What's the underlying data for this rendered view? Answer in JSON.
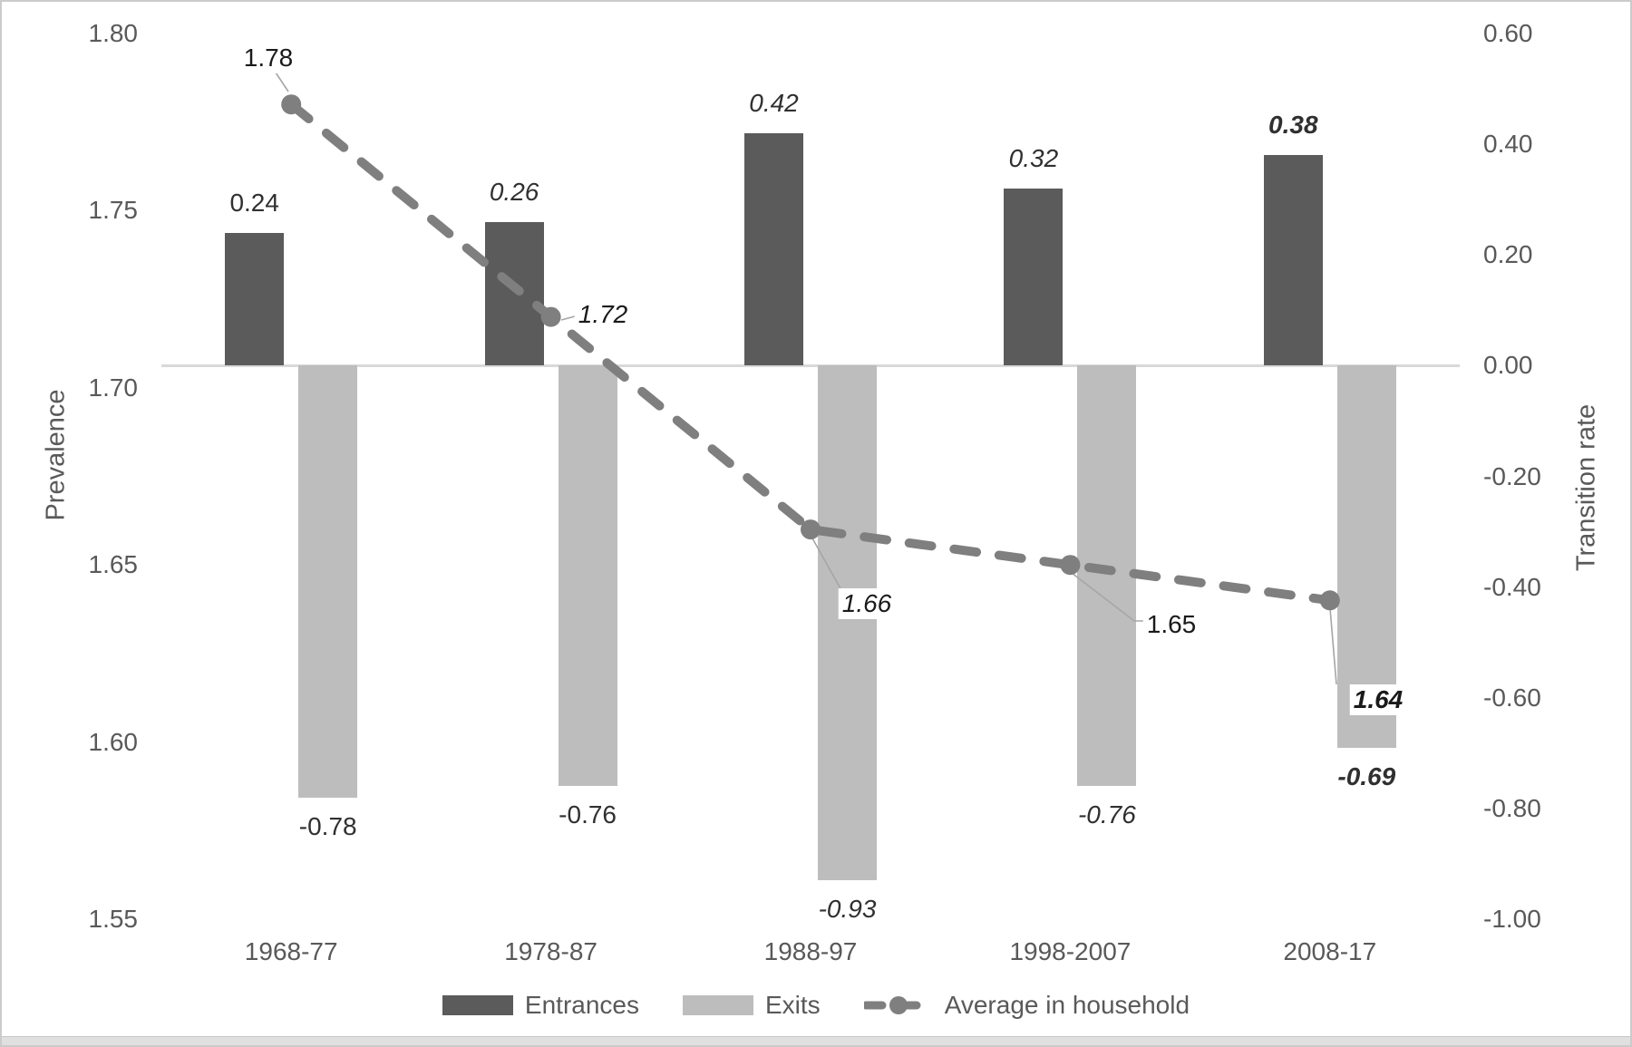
{
  "chart_data": {
    "type": "combo-bar-line",
    "categories": [
      "1968-77",
      "1978-87",
      "1988-97",
      "1998-2007",
      "2008-17"
    ],
    "series": [
      {
        "name": "Entrances",
        "type": "bar",
        "axis": "right",
        "color": "#5b5b5b",
        "values": [
          0.24,
          0.26,
          0.42,
          0.32,
          0.38
        ],
        "labels": [
          "0.24",
          "0.26",
          "0.42",
          "0.32",
          "0.38"
        ],
        "label_styles": [
          "regular",
          "italic",
          "italic",
          "italic",
          "bold-italic"
        ]
      },
      {
        "name": "Exits",
        "type": "bar",
        "axis": "right",
        "color": "#bdbdbd",
        "values": [
          -0.78,
          -0.76,
          -0.93,
          -0.76,
          -0.69
        ],
        "labels": [
          "-0.78",
          "-0.76",
          "-0.93",
          "-0.76",
          "-0.69"
        ],
        "label_styles": [
          "regular",
          "regular",
          "italic",
          "italic",
          "bold-italic"
        ]
      },
      {
        "name": "Average in household",
        "type": "line",
        "axis": "left",
        "color": "#7f7f7f",
        "values": [
          1.78,
          1.72,
          1.66,
          1.65,
          1.64
        ],
        "labels": [
          "1.78",
          "1.72",
          "1.66",
          "1.65",
          "1.64"
        ],
        "label_styles": [
          "regular",
          "italic",
          "italic",
          "regular",
          "bold-italic"
        ]
      }
    ],
    "left_axis": {
      "title": "Prevalence",
      "min": 1.55,
      "max": 1.8,
      "ticks": [
        "1.80",
        "1.75",
        "1.70",
        "1.65",
        "1.60",
        "1.55"
      ]
    },
    "right_axis": {
      "title": "Transition rate",
      "min": -1.0,
      "max": 0.6,
      "ticks": [
        "0.60",
        "0.40",
        "0.20",
        "0.00",
        "-0.20",
        "-0.40",
        "-0.60",
        "-0.80",
        "-1.00"
      ]
    },
    "grid": false,
    "legend_position": "bottom",
    "zero_line_color": "#d9d9d9",
    "leader_line_color": "#a6a6a6"
  }
}
